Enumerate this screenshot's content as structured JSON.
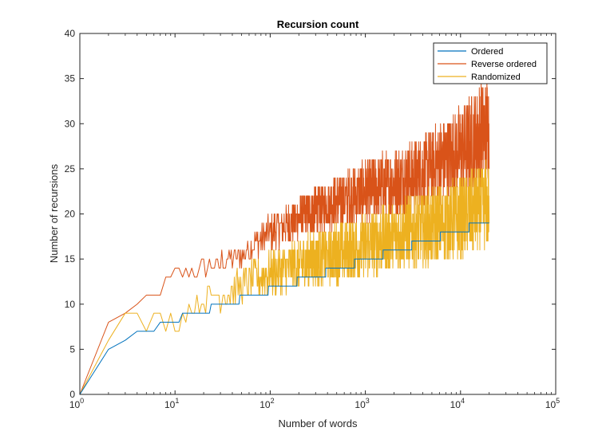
{
  "chart_data": {
    "type": "line",
    "title": "Recursion count",
    "xlabel": "Number of words",
    "ylabel": "Number of recursions",
    "xscale": "log",
    "xlim": [
      1,
      100000
    ],
    "ylim": [
      0,
      40
    ],
    "x_ticks": [
      {
        "base": "10",
        "exp": "0",
        "value": 1
      },
      {
        "base": "10",
        "exp": "1",
        "value": 10
      },
      {
        "base": "10",
        "exp": "2",
        "value": 100
      },
      {
        "base": "10",
        "exp": "3",
        "value": 1000
      },
      {
        "base": "10",
        "exp": "4",
        "value": 10000
      },
      {
        "base": "10",
        "exp": "5",
        "value": 100000
      }
    ],
    "y_ticks": [
      "0",
      "5",
      "10",
      "15",
      "20",
      "25",
      "30",
      "35",
      "40"
    ],
    "grid": false,
    "legend_position": "top-right",
    "n_max": 20000,
    "series": [
      {
        "name": "Ordered",
        "color": "#0072BD",
        "points": [
          [
            1,
            0
          ],
          [
            2,
            5
          ],
          [
            3,
            6
          ],
          [
            4,
            7
          ],
          [
            6,
            7
          ],
          [
            7,
            8
          ],
          [
            11,
            8
          ],
          [
            12,
            9
          ],
          [
            23,
            9
          ],
          [
            24,
            10
          ],
          [
            47,
            10
          ],
          [
            48,
            11
          ],
          [
            95,
            11
          ],
          [
            96,
            12
          ],
          [
            191,
            12
          ],
          [
            192,
            13
          ],
          [
            383,
            13
          ],
          [
            384,
            14
          ],
          [
            767,
            14
          ],
          [
            768,
            15
          ],
          [
            1535,
            15
          ],
          [
            1536,
            16
          ],
          [
            3071,
            16
          ],
          [
            3072,
            17
          ],
          [
            6143,
            17
          ],
          [
            6144,
            18
          ],
          [
            12287,
            18
          ],
          [
            12288,
            19
          ],
          [
            20000,
            19
          ]
        ]
      },
      {
        "name": "Reverse ordered",
        "color": "#D95319",
        "band": {
          "x": [
            1,
            2,
            3,
            5,
            10,
            20,
            50,
            100,
            300,
            1000,
            3000,
            10000,
            20000
          ],
          "low": [
            0,
            8,
            9,
            10,
            12,
            13,
            14,
            16,
            18,
            19,
            20,
            22,
            23
          ],
          "high": [
            0,
            8,
            9,
            11,
            14,
            15,
            17,
            20,
            23,
            26,
            28,
            32,
            36
          ]
        }
      },
      {
        "name": "Randomized",
        "color": "#EDB120",
        "band": {
          "x": [
            1,
            2,
            3,
            5,
            10,
            20,
            50,
            100,
            300,
            1000,
            3000,
            10000,
            20000
          ],
          "low": [
            0,
            6,
            8,
            7,
            7,
            9,
            10,
            11,
            12,
            13,
            14,
            15,
            16
          ],
          "high": [
            0,
            6,
            9,
            9,
            10,
            12,
            14,
            16,
            18,
            20,
            22,
            24,
            26
          ]
        }
      }
    ]
  }
}
